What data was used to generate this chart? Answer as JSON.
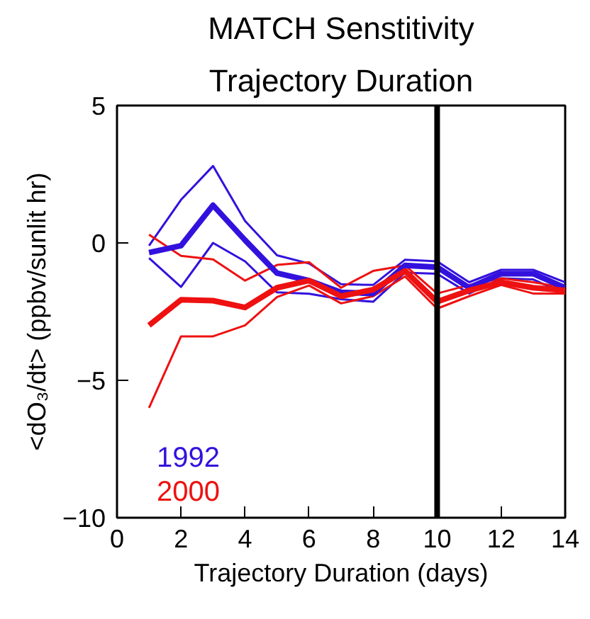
{
  "chart_data": {
    "type": "line",
    "title": "MATCH Senstitivity",
    "subtitle": "Trajectory Duration",
    "xlabel": "Trajectory Duration (days)",
    "ylabel": "<dO₃/dt> (ppbv/sunlit hr)",
    "x": [
      1,
      2,
      3,
      4,
      5,
      6,
      7,
      8,
      9,
      10,
      11,
      12,
      13,
      14
    ],
    "series": [
      {
        "color": "#3311dd",
        "values": [
          -0.1,
          1.57,
          2.8,
          0.8,
          -0.45,
          -0.75,
          -1.5,
          -1.53,
          -0.61,
          -0.67,
          -1.43,
          -0.98,
          -0.98,
          -1.43
        ]
      },
      {
        "color": "#3311dd",
        "values": [
          -0.55,
          -1.6,
          0,
          -0.67,
          -1.8,
          -1.85,
          -2.05,
          -2.14,
          -1.08,
          -1.12,
          -1.84,
          -1.29,
          -1.33,
          -1.84
        ]
      },
      {
        "color": "#ee1111",
        "values": [
          0.3,
          -0.47,
          -0.6,
          -1.37,
          -0.8,
          -0.7,
          -1.63,
          -1.02,
          -0.82,
          -1.84,
          -1.53,
          -1.29,
          -1.43,
          -1.63
        ]
      },
      {
        "color": "#ee1111",
        "values": [
          -6.0,
          -3.4,
          -3.4,
          -3.0,
          -1.97,
          -1.55,
          -2.2,
          -1.94,
          -1.22,
          -2.39,
          -1.94,
          -1.53,
          -1.84,
          -1.84
        ]
      },
      {
        "name": "1992",
        "color": "#3311dd",
        "values": [
          -0.35,
          -0.1,
          1.37,
          0.1,
          -1.1,
          -1.37,
          -1.8,
          -1.84,
          -0.82,
          -0.88,
          -1.63,
          -1.12,
          -1.12,
          -1.63
        ]
      },
      {
        "name": "2000",
        "color": "#ee1111",
        "values": [
          -3.0,
          -2.07,
          -2.1,
          -2.35,
          -1.63,
          -1.37,
          -1.94,
          -1.7,
          -1.02,
          -2.14,
          -1.73,
          -1.43,
          -1.63,
          -1.73
        ]
      }
    ],
    "xlim": [
      0,
      14
    ],
    "ylim": [
      -10,
      5
    ],
    "xticks": [
      0,
      2,
      4,
      6,
      8,
      10,
      12,
      14
    ],
    "yticks": [
      -10,
      -5,
      0,
      5
    ],
    "ref_lines": [
      {
        "axis": "x",
        "value": 10,
        "color": "#000000"
      }
    ],
    "grid": false,
    "legend": "bottom left",
    "marker": "none",
    "line_style": "solid"
  }
}
